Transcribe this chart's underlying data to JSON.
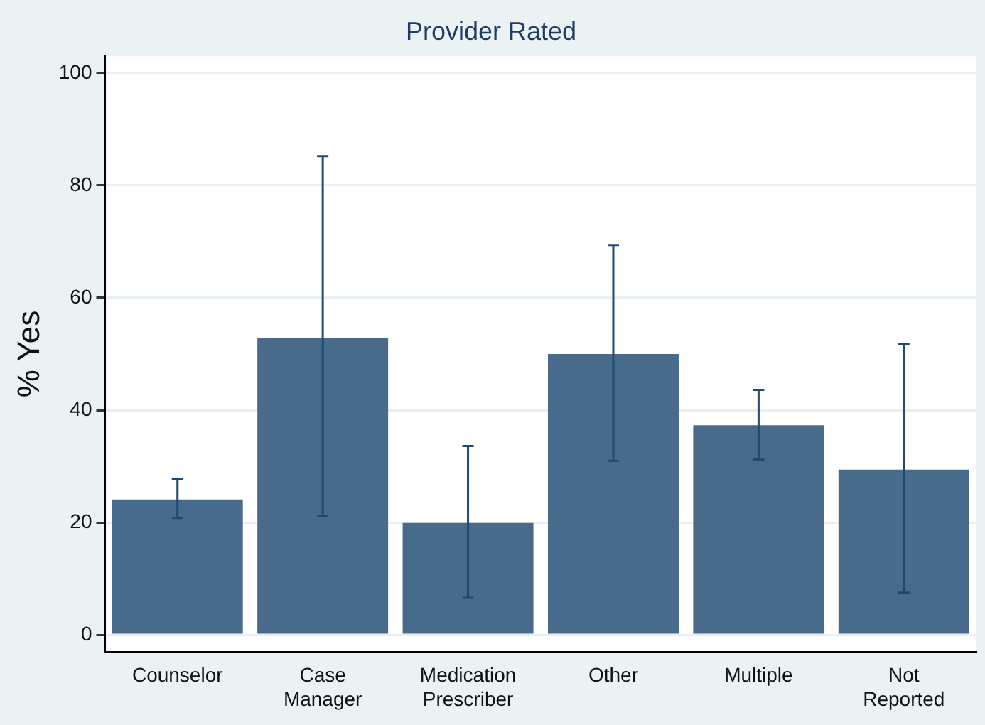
{
  "chart_data": {
    "type": "bar",
    "title": "Provider Rated",
    "ylabel": "% Yes",
    "categories": [
      "Counselor",
      "Case Manager",
      "Medication Prescriber",
      "Other",
      "Multiple",
      "Not Reported"
    ],
    "values": [
      24.1,
      52.9,
      19.9,
      50.0,
      37.3,
      29.4
    ],
    "errors": [
      [
        20.8,
        27.7
      ],
      [
        21.2,
        85.2
      ],
      [
        6.6,
        33.6
      ],
      [
        31.0,
        69.4
      ],
      [
        31.2,
        43.6
      ],
      [
        7.5,
        51.8
      ]
    ],
    "color": "#486b8c",
    "ylim": [
      -3,
      103
    ],
    "yticks": [
      0,
      20,
      40,
      60,
      80,
      100
    ],
    "grid": "y",
    "legend": false
  }
}
